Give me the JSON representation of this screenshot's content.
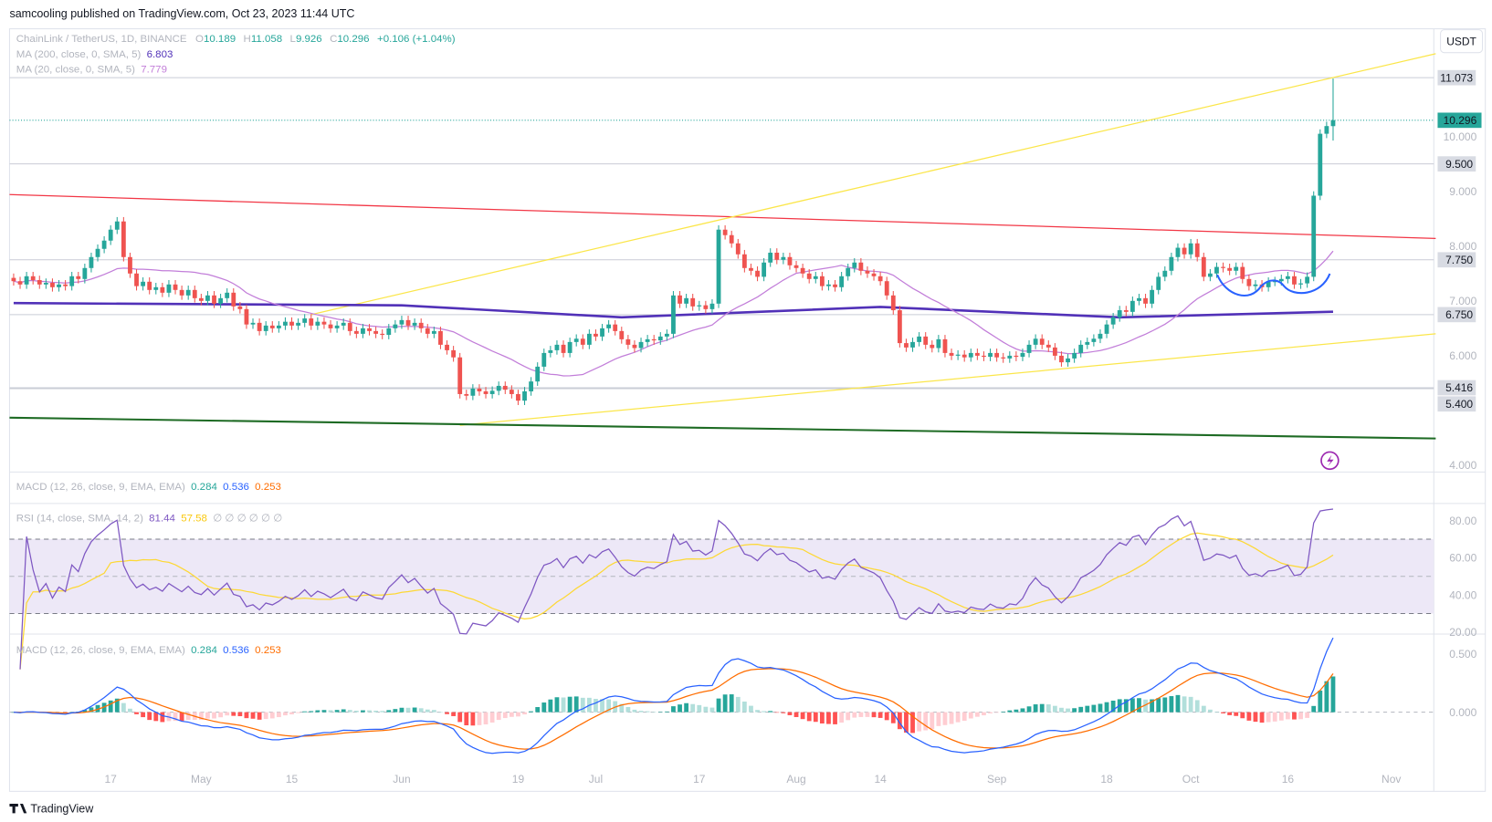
{
  "header": {
    "published": "samcooling published on TradingView.com, Oct 23, 2023 11:44 UTC"
  },
  "legend": {
    "symbol": "ChainLink / TetherUS, 1D, BINANCE",
    "o_label": "O",
    "o": "10.189",
    "h_label": "H",
    "h": "11.058",
    "l_label": "L",
    "l": "9.926",
    "c_label": "C",
    "c": "10.296",
    "change": "+0.106 (+1.04%)",
    "ma200_label": "MA (200, close, 0, SMA, 5)",
    "ma200": "6.803",
    "ma20_label": "MA (20, close, 0, SMA, 5)",
    "ma20": "7.779"
  },
  "currency_button": "USDT",
  "macd_collapsed": {
    "label": "MACD (12, 26, close, 9, EMA, EMA)",
    "hist": "0.284",
    "macd": "0.536",
    "signal": "0.253"
  },
  "rsi_legend": {
    "label": "RSI (14, close, SMA, 14, 2)",
    "rsi": "81.44",
    "ma": "57.58",
    "extras": "∅  ∅  ∅  ∅  ∅  ∅"
  },
  "macd_legend": {
    "label": "MACD (12, 26, close, 9, EMA, EMA)",
    "hist": "0.284",
    "macd": "0.536",
    "signal": "0.253"
  },
  "footer": {
    "brand": "TradingView"
  },
  "colors": {
    "up": "#26a69a",
    "down": "#ef5350",
    "ma200": "#5131b8",
    "ma20": "#c27ed9",
    "resistance": "#f23645",
    "channel": "#fbe64a",
    "support": "#1e6b24",
    "cup": "#2962ff",
    "rsi": "#7e57c2",
    "rsi_ma": "#fdd835",
    "macd": "#2962ff",
    "signal": "#ff6d00"
  },
  "chart_data": [
    {
      "type": "candlestick",
      "title": "ChainLink / TetherUS, 1D, BINANCE",
      "y_unit": "USDT",
      "ylim": [
        4.0,
        11.6
      ],
      "y_ticks": [
        "10.000",
        "9.000",
        "8.000",
        "7.000",
        "6.000",
        "4.000"
      ],
      "price_tags": [
        {
          "value": "11.073",
          "line": true
        },
        {
          "value": "10.296",
          "current": true
        },
        {
          "value": "9.500",
          "line": true
        },
        {
          "value": "7.750",
          "line": true
        },
        {
          "value": "6.750",
          "line": true
        },
        {
          "value": "5.416",
          "line": true
        },
        {
          "value": "5.400",
          "line": true
        }
      ],
      "x_ticks": [
        {
          "date": "04-17",
          "label": "17"
        },
        {
          "date": "05-01",
          "label": "May"
        },
        {
          "date": "05-15",
          "label": "15"
        },
        {
          "date": "06-01",
          "label": "Jun"
        },
        {
          "date": "06-19",
          "label": "19"
        },
        {
          "date": "07-01",
          "label": "Jul"
        },
        {
          "date": "07-17",
          "label": "17"
        },
        {
          "date": "08-01",
          "label": "Aug"
        },
        {
          "date": "08-14",
          "label": "14"
        },
        {
          "date": "09-01",
          "label": "Sep"
        },
        {
          "date": "09-18",
          "label": "18"
        },
        {
          "date": "10-01",
          "label": "Oct"
        },
        {
          "date": "10-16",
          "label": "16"
        },
        {
          "date": "11-01",
          "label": "Nov"
        }
      ],
      "last_candle": {
        "open": 10.189,
        "high": 11.058,
        "low": 9.926,
        "close": 10.296
      },
      "closes": [
        [
          "04-02",
          7.36
        ],
        [
          "04-03",
          7.3
        ],
        [
          "04-04",
          7.45
        ],
        [
          "04-05",
          7.38
        ],
        [
          "04-06",
          7.3
        ],
        [
          "04-07",
          7.33
        ],
        [
          "04-08",
          7.25
        ],
        [
          "04-09",
          7.3
        ],
        [
          "04-10",
          7.27
        ],
        [
          "04-11",
          7.45
        ],
        [
          "04-12",
          7.4
        ],
        [
          "04-13",
          7.6
        ],
        [
          "04-14",
          7.8
        ],
        [
          "04-15",
          7.95
        ],
        [
          "04-16",
          8.1
        ],
        [
          "04-17",
          8.3
        ],
        [
          "04-18",
          8.45
        ],
        [
          "04-19",
          7.8
        ],
        [
          "04-20",
          7.5
        ],
        [
          "04-21",
          7.27
        ],
        [
          "04-22",
          7.35
        ],
        [
          "04-23",
          7.2
        ],
        [
          "04-24",
          7.25
        ],
        [
          "04-25",
          7.15
        ],
        [
          "04-26",
          7.3
        ],
        [
          "04-27",
          7.2
        ],
        [
          "04-28",
          7.1
        ],
        [
          "04-29",
          7.2
        ],
        [
          "04-30",
          7.05
        ],
        [
          "05-01",
          7.0
        ],
        [
          "05-02",
          7.1
        ],
        [
          "05-03",
          6.95
        ],
        [
          "05-04",
          7.05
        ],
        [
          "05-05",
          7.15
        ],
        [
          "05-06",
          6.9
        ],
        [
          "05-07",
          6.85
        ],
        [
          "05-08",
          6.57
        ],
        [
          "05-09",
          6.6
        ],
        [
          "05-10",
          6.45
        ],
        [
          "05-11",
          6.55
        ],
        [
          "05-12",
          6.5
        ],
        [
          "05-13",
          6.55
        ],
        [
          "05-14",
          6.62
        ],
        [
          "05-15",
          6.55
        ],
        [
          "05-16",
          6.6
        ],
        [
          "05-17",
          6.68
        ],
        [
          "05-18",
          6.55
        ],
        [
          "05-19",
          6.62
        ],
        [
          "05-20",
          6.57
        ],
        [
          "05-21",
          6.5
        ],
        [
          "05-22",
          6.55
        ],
        [
          "05-23",
          6.6
        ],
        [
          "05-24",
          6.45
        ],
        [
          "05-25",
          6.4
        ],
        [
          "05-26",
          6.5
        ],
        [
          "05-27",
          6.45
        ],
        [
          "05-28",
          6.4
        ],
        [
          "05-29",
          6.38
        ],
        [
          "05-30",
          6.5
        ],
        [
          "05-31",
          6.57
        ],
        [
          "06-01",
          6.65
        ],
        [
          "06-02",
          6.55
        ],
        [
          "06-03",
          6.6
        ],
        [
          "06-04",
          6.5
        ],
        [
          "06-05",
          6.4
        ],
        [
          "06-06",
          6.45
        ],
        [
          "06-07",
          6.2
        ],
        [
          "06-08",
          6.1
        ],
        [
          "06-09",
          5.97
        ],
        [
          "06-10",
          5.3
        ],
        [
          "06-11",
          5.27
        ],
        [
          "06-12",
          5.4
        ],
        [
          "06-13",
          5.35
        ],
        [
          "06-14",
          5.3
        ],
        [
          "06-15",
          5.36
        ],
        [
          "06-16",
          5.45
        ],
        [
          "06-17",
          5.38
        ],
        [
          "06-18",
          5.3
        ],
        [
          "06-19",
          5.18
        ],
        [
          "06-20",
          5.35
        ],
        [
          "06-21",
          5.53
        ],
        [
          "06-22",
          5.8
        ],
        [
          "06-23",
          6.05
        ],
        [
          "06-24",
          6.1
        ],
        [
          "06-25",
          6.2
        ],
        [
          "06-26",
          6.05
        ],
        [
          "06-27",
          6.25
        ],
        [
          "06-28",
          6.31
        ],
        [
          "06-29",
          6.2
        ],
        [
          "06-30",
          6.4
        ],
        [
          "07-01",
          6.35
        ],
        [
          "07-02",
          6.5
        ],
        [
          "07-03",
          6.57
        ],
        [
          "07-04",
          6.45
        ],
        [
          "07-05",
          6.3
        ],
        [
          "07-06",
          6.2
        ],
        [
          "07-07",
          6.14
        ],
        [
          "07-08",
          6.25
        ],
        [
          "07-09",
          6.3
        ],
        [
          "07-10",
          6.28
        ],
        [
          "07-11",
          6.35
        ],
        [
          "07-12",
          6.4
        ],
        [
          "07-13",
          7.1
        ],
        [
          "07-14",
          6.95
        ],
        [
          "07-15",
          7.05
        ],
        [
          "07-16",
          6.9
        ],
        [
          "07-17",
          6.92
        ],
        [
          "07-18",
          6.85
        ],
        [
          "07-19",
          6.95
        ],
        [
          "07-20",
          8.3
        ],
        [
          "07-21",
          8.2
        ],
        [
          "07-22",
          8.05
        ],
        [
          "07-23",
          7.85
        ],
        [
          "07-24",
          7.6
        ],
        [
          "07-25",
          7.55
        ],
        [
          "07-26",
          7.44
        ],
        [
          "07-27",
          7.7
        ],
        [
          "07-28",
          7.88
        ],
        [
          "07-29",
          7.75
        ],
        [
          "07-30",
          7.8
        ],
        [
          "07-31",
          7.65
        ],
        [
          "08-01",
          7.6
        ],
        [
          "08-02",
          7.5
        ],
        [
          "08-03",
          7.4
        ],
        [
          "08-04",
          7.45
        ],
        [
          "08-05",
          7.27
        ],
        [
          "08-06",
          7.3
        ],
        [
          "08-07",
          7.25
        ],
        [
          "08-08",
          7.45
        ],
        [
          "08-09",
          7.6
        ],
        [
          "08-10",
          7.7
        ],
        [
          "08-11",
          7.55
        ],
        [
          "08-12",
          7.5
        ],
        [
          "08-13",
          7.45
        ],
        [
          "08-14",
          7.36
        ],
        [
          "08-15",
          7.1
        ],
        [
          "08-16",
          6.83
        ],
        [
          "08-17",
          6.23
        ],
        [
          "08-18",
          6.15
        ],
        [
          "08-19",
          6.25
        ],
        [
          "08-20",
          6.35
        ],
        [
          "08-21",
          6.2
        ],
        [
          "08-22",
          6.14
        ],
        [
          "08-23",
          6.3
        ],
        [
          "08-24",
          6.05
        ],
        [
          "08-25",
          6.0
        ],
        [
          "08-26",
          6.02
        ],
        [
          "08-27",
          5.97
        ],
        [
          "08-28",
          6.05
        ],
        [
          "08-29",
          6.0
        ],
        [
          "08-30",
          5.98
        ],
        [
          "08-31",
          6.05
        ],
        [
          "09-01",
          5.97
        ],
        [
          "09-02",
          5.95
        ],
        [
          "09-03",
          6.0
        ],
        [
          "09-04",
          5.98
        ],
        [
          "09-05",
          6.05
        ],
        [
          "09-06",
          6.2
        ],
        [
          "09-07",
          6.31
        ],
        [
          "09-08",
          6.2
        ],
        [
          "09-09",
          6.15
        ],
        [
          "09-10",
          6.0
        ],
        [
          "09-11",
          5.88
        ],
        [
          "09-12",
          5.95
        ],
        [
          "09-13",
          6.05
        ],
        [
          "09-14",
          6.2
        ],
        [
          "09-15",
          6.25
        ],
        [
          "09-16",
          6.31
        ],
        [
          "09-17",
          6.4
        ],
        [
          "09-18",
          6.57
        ],
        [
          "09-19",
          6.7
        ],
        [
          "09-20",
          6.83
        ],
        [
          "09-21",
          6.8
        ],
        [
          "09-22",
          7.0
        ],
        [
          "09-23",
          7.05
        ],
        [
          "09-24",
          6.95
        ],
        [
          "09-25",
          7.2
        ],
        [
          "09-26",
          7.44
        ],
        [
          "09-27",
          7.55
        ],
        [
          "09-28",
          7.8
        ],
        [
          "09-29",
          7.97
        ],
        [
          "09-30",
          7.85
        ],
        [
          "10-01",
          8.05
        ],
        [
          "10-02",
          7.8
        ],
        [
          "10-03",
          7.44
        ],
        [
          "10-04",
          7.5
        ],
        [
          "10-05",
          7.62
        ],
        [
          "10-06",
          7.6
        ],
        [
          "10-07",
          7.55
        ],
        [
          "10-08",
          7.62
        ],
        [
          "10-09",
          7.4
        ],
        [
          "10-10",
          7.27
        ],
        [
          "10-11",
          7.3
        ],
        [
          "10-12",
          7.25
        ],
        [
          "10-13",
          7.35
        ],
        [
          "10-14",
          7.36
        ],
        [
          "10-15",
          7.4
        ],
        [
          "10-16",
          7.45
        ],
        [
          "10-17",
          7.3
        ],
        [
          "10-18",
          7.32
        ],
        [
          "10-19",
          7.44
        ],
        [
          "10-20",
          8.92
        ],
        [
          "10-21",
          10.05
        ],
        [
          "10-22",
          10.19
        ],
        [
          "10-23",
          10.296
        ]
      ],
      "ma200": [
        [
          "04-02",
          6.96
        ],
        [
          "06-01",
          6.92
        ],
        [
          "07-05",
          6.7
        ],
        [
          "08-14",
          6.89
        ],
        [
          "09-20",
          6.7
        ],
        [
          "10-23",
          6.803
        ]
      ],
      "trendlines": [
        {
          "kind": "resistance",
          "from": [
            "04-01",
            8.94
          ],
          "to": [
            "11-08",
            8.14
          ]
        },
        {
          "kind": "channel-upper",
          "from": [
            "05-18",
            6.75
          ],
          "to": [
            "11-08",
            11.51
          ]
        },
        {
          "kind": "channel-lower",
          "from": [
            "06-10",
            4.73
          ],
          "to": [
            "11-08",
            6.4
          ]
        },
        {
          "kind": "support",
          "from": [
            "04-01",
            4.87
          ],
          "to": [
            "11-08",
            4.49
          ]
        }
      ]
    },
    {
      "type": "line",
      "title": "RSI (14, close, SMA, 14, 2)",
      "ylim": [
        15,
        90
      ],
      "y_ticks": [
        "80.00",
        "60.00",
        "40.00",
        "20.00"
      ],
      "bands": [
        70,
        50,
        30
      ],
      "last": {
        "rsi": 81.44,
        "ma": 57.58
      }
    },
    {
      "type": "bar+line",
      "title": "MACD (12, 26, close, 9, EMA, EMA)",
      "y_ticks": [
        "0.500",
        "0.000"
      ],
      "last": {
        "hist": 0.284,
        "macd": 0.536,
        "signal": 0.253
      }
    }
  ]
}
